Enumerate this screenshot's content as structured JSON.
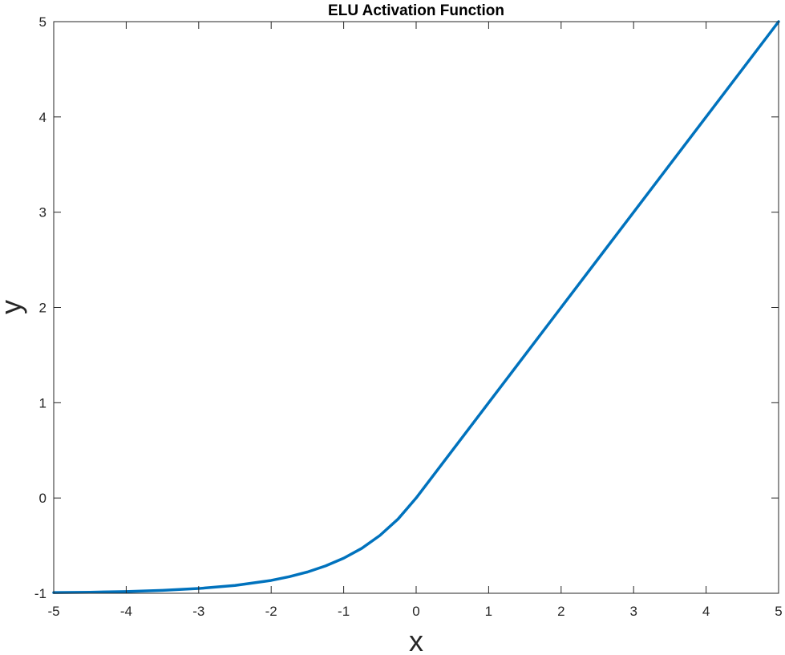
{
  "chart_data": {
    "type": "line",
    "title": "ELU Activation Function",
    "xlabel": "x",
    "ylabel": "y",
    "xlim": [
      -5,
      5
    ],
    "ylim": [
      -1,
      5
    ],
    "grid": false,
    "xticks": [
      -5,
      -4,
      -3,
      -2,
      -1,
      0,
      1,
      2,
      3,
      4,
      5
    ],
    "yticks": [
      -1,
      0,
      1,
      2,
      3,
      4,
      5
    ],
    "xtick_labels": [
      "-5",
      "-4",
      "-3",
      "-2",
      "-1",
      "0",
      "1",
      "2",
      "3",
      "4",
      "5"
    ],
    "ytick_labels": [
      "-1",
      "0",
      "1",
      "2",
      "3",
      "4",
      "5"
    ],
    "series": [
      {
        "color": "#0072BD",
        "x": [
          -5,
          -4.5,
          -4,
          -3.5,
          -3,
          -2.5,
          -2,
          -1.75,
          -1.5,
          -1.25,
          -1,
          -0.75,
          -0.5,
          -0.25,
          0,
          1,
          2,
          3,
          4,
          5
        ],
        "y": [
          -0.993,
          -0.989,
          -0.982,
          -0.97,
          -0.95,
          -0.918,
          -0.865,
          -0.826,
          -0.777,
          -0.713,
          -0.632,
          -0.528,
          -0.393,
          -0.221,
          0,
          1,
          2,
          3,
          4,
          5
        ]
      }
    ]
  }
}
